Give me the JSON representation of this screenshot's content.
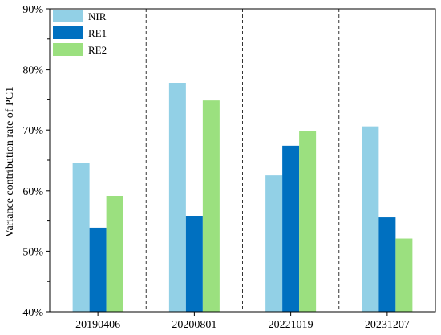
{
  "chart_data": {
    "type": "bar",
    "ylabel": "Variance contribution rate of PC1",
    "categories": [
      "20190406",
      "20200801",
      "20221019",
      "20231207"
    ],
    "series": [
      {
        "name": "NIR",
        "color": "#92d0e6",
        "values": [
          64.5,
          77.8,
          62.6,
          70.6
        ]
      },
      {
        "name": "RE1",
        "color": "#0070c0",
        "values": [
          53.9,
          55.8,
          67.4,
          55.6
        ]
      },
      {
        "name": "RE2",
        "color": "#9be07f",
        "values": [
          59.1,
          74.9,
          69.8,
          52.1
        ]
      }
    ],
    "ylim": [
      40,
      90
    ],
    "yticks": [
      40,
      50,
      60,
      70,
      80,
      90
    ],
    "ytick_labels": [
      "40%",
      "50%",
      "60%",
      "70%",
      "80%",
      "90%"
    ],
    "legend_position": "top-left",
    "category_separators": "dashed"
  }
}
